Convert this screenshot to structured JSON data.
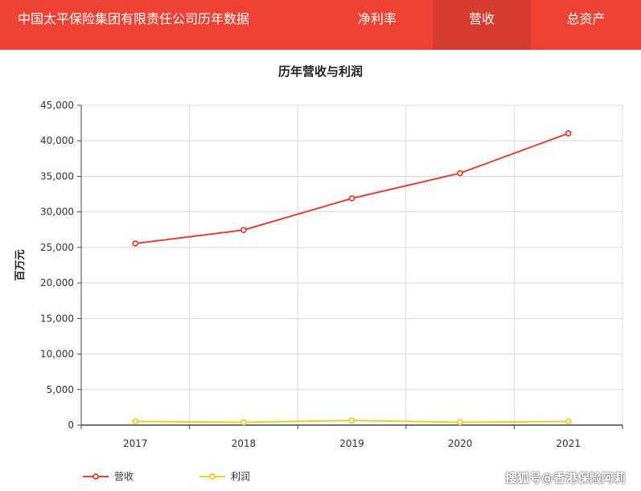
{
  "header": {
    "title": "中国太平保险集团有限责任公司历年数据",
    "tabs": [
      {
        "label": "净利率",
        "active": false
      },
      {
        "label": "营收",
        "active": true
      },
      {
        "label": "总资产",
        "active": false
      }
    ],
    "color": "#ef4234",
    "active_color": "#d63b2f"
  },
  "chart_data": {
    "type": "line",
    "title": "历年营收与利润",
    "ylabel": "百万元",
    "xlabel": "",
    "categories": [
      "2017",
      "2018",
      "2019",
      "2020",
      "2021"
    ],
    "yticks": [
      "0",
      "5,000",
      "10,000",
      "15,000",
      "20,000",
      "25,000",
      "30,000",
      "35,000",
      "40,000",
      "45,000"
    ],
    "ylim": [
      0,
      45000
    ],
    "grid": true,
    "legend_position": "bottom-left",
    "series": [
      {
        "name": "营收",
        "color": "#e8412f",
        "values": [
          25550,
          27450,
          31900,
          35450,
          41050
        ]
      },
      {
        "name": "利润",
        "color": "#f5cc1a",
        "values": [
          520,
          400,
          650,
          400,
          520
        ]
      }
    ]
  },
  "watermark": "搜狐号@香港保险阿莉"
}
